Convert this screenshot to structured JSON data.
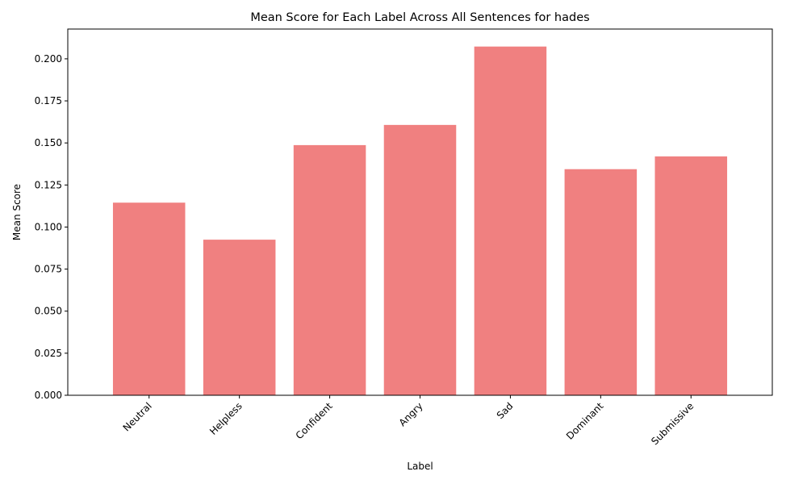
{
  "chart_data": {
    "type": "bar",
    "title": "Mean Score for Each Label Across All Sentences for hades",
    "xlabel": "Label",
    "ylabel": "Mean Score",
    "categories": [
      "Neutral",
      "Helpless",
      "Confident",
      "Angry",
      "Sad",
      "Dominant",
      "Submissive"
    ],
    "values": [
      0.1145,
      0.0925,
      0.1487,
      0.1607,
      0.2073,
      0.1344,
      0.142
    ],
    "ylim": [
      0,
      0.2177
    ],
    "yticks": [
      "0.000",
      "0.025",
      "0.050",
      "0.075",
      "0.100",
      "0.125",
      "0.150",
      "0.175",
      "0.200"
    ],
    "bar_color": "#f08080",
    "grid": false,
    "legend": "none"
  }
}
